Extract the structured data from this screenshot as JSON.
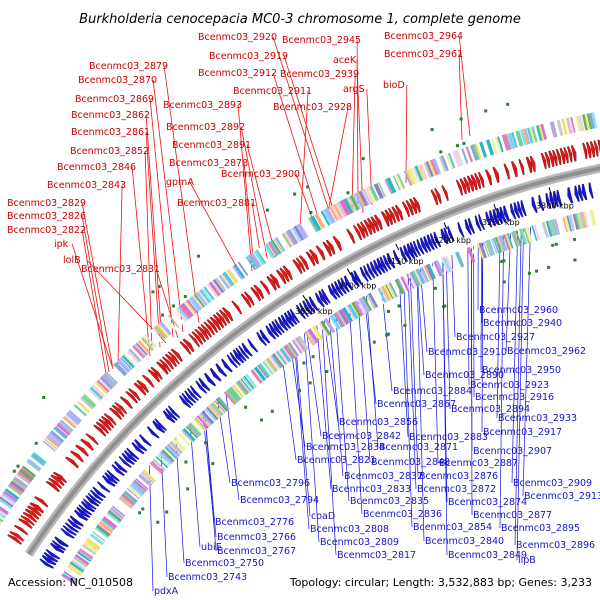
{
  "title": "Burkholderia cenocepacia MC0-3 chromosome 1, complete genome",
  "footer": {
    "accession": "Accession: NC_010508",
    "topology": "Topology: circular; Length: 3,532,883 bp; Genes: 3,233"
  },
  "colors": {
    "forward": "#ee1111",
    "reverse": "#1414dd",
    "backbone": "#909090"
  },
  "ticks": [
    "3050 kbp",
    "3100 kbp",
    "3150 kbp",
    "3200 kbp",
    "3250 kbp",
    "3300 kbp"
  ],
  "forward_labels": [
    "Bcenmc03_2920",
    "Bcenmc03_2945",
    "Bcenmc03_2964",
    "Bcenmc03_2879",
    "Bcenmc03_2919",
    "Bcenmc03_2961",
    "aceK",
    "Bcenmc03_2870",
    "Bcenmc03_2912",
    "Bcenmc03_2939",
    "bioD",
    "Bcenmc03_2911",
    "argS",
    "Bcenmc03_2869",
    "Bcenmc03_2893",
    "Bcenmc03_2928",
    "Bcenmc03_2862",
    "Bcenmc03_2892",
    "Bcenmc03_2861",
    "Bcenmc03_2891",
    "Bcenmc03_2852",
    "Bcenmc03_2878",
    "Bcenmc03_2846",
    "Bcenmc03_2900",
    "gpmA",
    "Bcenmc03_2843",
    "Bcenmc03_2881",
    "Bcenmc03_2829",
    "Bcenmc03_2826",
    "Bcenmc03_2822",
    "ipk",
    "lolB",
    "Bcenmc03_2831"
  ],
  "reverse_labels": [
    "Bcenmc03_2960",
    "Bcenmc03_2940",
    "Bcenmc03_2927",
    "Bcenmc03_2962",
    "Bcenmc03_2910",
    "Bcenmc03_2950",
    "Bcenmc03_2890",
    "Bcenmc03_2923",
    "Bcenmc03_2884",
    "Bcenmc03_2916",
    "Bcenmc03_2867",
    "Bcenmc03_2894",
    "Bcenmc03_2933",
    "Bcenmc03_2856",
    "Bcenmc03_2917",
    "Bcenmc03_2842",
    "Bcenmc03_2883",
    "Bcenmc03_2834",
    "Bcenmc03_2871",
    "Bcenmc03_2907",
    "Bcenmc03_2821",
    "Bcenmc03_2848",
    "Bcenmc03_2887",
    "Bcenmc03_2832",
    "Bcenmc03_2876",
    "Bcenmc03_2909",
    "Bcenmc03_2796",
    "Bcenmc03_2833",
    "Bcenmc03_2872",
    "Bcenmc03_2913",
    "Bcenmc03_2794",
    "Bcenmc03_2835",
    "Bcenmc03_2874",
    "Bcenmc03_2776",
    "coaD",
    "Bcenmc03_2836",
    "Bcenmc03_2877",
    "Bcenmc03_2766",
    "Bcenmc03_2808",
    "Bcenmc03_2854",
    "Bcenmc03_2895",
    "ubiE",
    "Bcenmc03_2767",
    "Bcenmc03_2809",
    "Bcenmc03_2840",
    "Bcenmc03_2896",
    "Bcenmc03_2750",
    "Bcenmc03_2817",
    "Bcenmc03_2849",
    "lipB",
    "Bcenmc03_2743",
    "pdxA"
  ]
}
